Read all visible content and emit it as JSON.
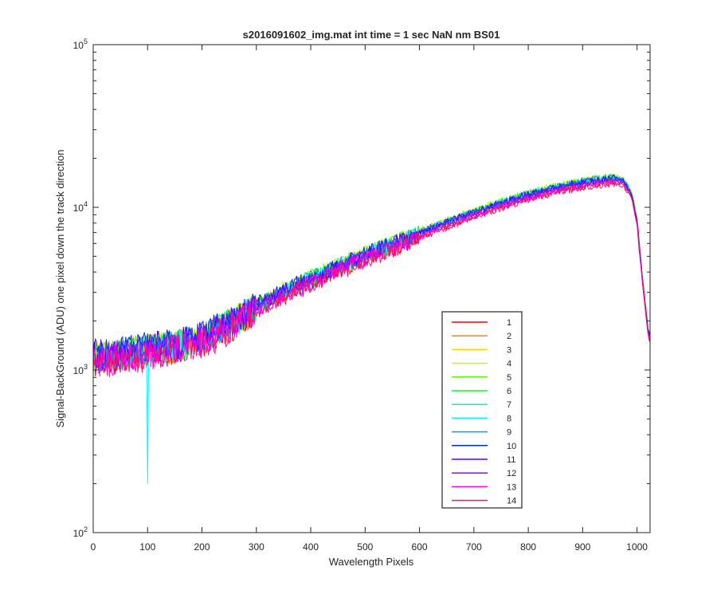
{
  "chart_data": {
    "type": "line",
    "title": "s2016091602_img.mat int time = 1 sec  NaN nm BS01",
    "xlabel": "Wavelength Pixels",
    "ylabel": "Signal-BackGround (ADU) one pixel down the track direction",
    "xlim": [
      0,
      1024
    ],
    "ylim": [
      100,
      100000
    ],
    "yscale": "log",
    "grid": false,
    "legend_position": "lower-right",
    "x_ticks": [
      0,
      100,
      200,
      300,
      400,
      500,
      600,
      700,
      800,
      900,
      1000
    ],
    "x_tick_labels": [
      "0",
      "100",
      "200",
      "300",
      "400",
      "500",
      "600",
      "700",
      "800",
      "900",
      "1000"
    ],
    "y_ticks": [
      {
        "value": 100,
        "base": "10",
        "exp": "2"
      },
      {
        "value": 1000,
        "base": "10",
        "exp": "3"
      },
      {
        "value": 10000,
        "base": "10",
        "exp": "4"
      },
      {
        "value": 100000,
        "base": "10",
        "exp": "5"
      }
    ],
    "x": [
      0,
      20,
      50,
      100,
      150,
      200,
      250,
      300,
      350,
      400,
      450,
      500,
      550,
      600,
      650,
      700,
      750,
      800,
      850,
      900,
      930,
      960,
      975,
      990,
      1000,
      1010,
      1020,
      1024
    ],
    "series": [
      {
        "name": "1",
        "color": "#ff0000",
        "values": [
          1120,
          1150,
          1200,
          1270,
          1360,
          1520,
          1850,
          2350,
          2900,
          3450,
          4100,
          4800,
          5600,
          6600,
          7700,
          8900,
          10100,
          11400,
          12500,
          13500,
          14000,
          14300,
          13900,
          11500,
          8000,
          3500,
          1700,
          1500
        ]
      },
      {
        "name": "2",
        "color": "#ff7f00",
        "values": [
          1160,
          1190,
          1240,
          1310,
          1400,
          1560,
          1900,
          2420,
          2980,
          3550,
          4230,
          4950,
          5780,
          6800,
          7900,
          9150,
          10400,
          11700,
          12850,
          13900,
          14400,
          14700,
          14200,
          11800,
          8200,
          3600,
          1750,
          1550
        ]
      },
      {
        "name": "3",
        "color": "#ffd400",
        "values": [
          1200,
          1230,
          1280,
          1350,
          1440,
          1610,
          1960,
          2490,
          3060,
          3650,
          4350,
          5100,
          5950,
          7000,
          8150,
          9400,
          10700,
          12050,
          13250,
          14350,
          14850,
          15200,
          14700,
          12200,
          8400,
          3700,
          1800,
          1600
        ]
      },
      {
        "name": "4",
        "color": "#b4ff00",
        "values": [
          1230,
          1260,
          1310,
          1380,
          1470,
          1640,
          2000,
          2540,
          3120,
          3720,
          4440,
          5200,
          6070,
          7150,
          8300,
          9600,
          10950,
          12300,
          13550,
          14650,
          15150,
          15500,
          15000,
          12400,
          8600,
          3750,
          1830,
          1620
        ]
      },
      {
        "name": "5",
        "color": "#55ff00",
        "values": [
          1220,
          1250,
          1300,
          1370,
          1460,
          1630,
          1990,
          2520,
          3100,
          3700,
          4410,
          5170,
          6030,
          7100,
          8250,
          9550,
          10900,
          12250,
          13500,
          14600,
          15100,
          15400,
          14900,
          12300,
          8500,
          3700,
          1820,
          1610
        ]
      },
      {
        "name": "6",
        "color": "#00ff2a",
        "values": [
          1200,
          1230,
          1280,
          1350,
          1440,
          1600,
          1950,
          2480,
          3050,
          3640,
          4340,
          5080,
          5930,
          6980,
          8120,
          9380,
          10700,
          12050,
          13250,
          14350,
          14850,
          15150,
          14650,
          12100,
          8400,
          3650,
          1800,
          1600
        ]
      },
      {
        "name": "7",
        "color": "#00ff99",
        "values": [
          1180,
          1210,
          1260,
          1330,
          1420,
          1580,
          1930,
          2450,
          3020,
          3600,
          4290,
          5030,
          5870,
          6900,
          8030,
          9280,
          10580,
          11900,
          13100,
          14200,
          14700,
          15000,
          14500,
          12000,
          8300,
          3600,
          1780,
          1580
        ]
      },
      {
        "name": "8",
        "color": "#00f5ff",
        "values": [
          1190,
          1220,
          1270,
          200,
          1430,
          1590,
          1940,
          2460,
          3030,
          3620,
          4310,
          5050,
          5900,
          6940,
          8070,
          9330,
          10640,
          11970,
          13170,
          14270,
          14770,
          15050,
          14550,
          12050,
          8350,
          3650,
          1790,
          1590
        ]
      },
      {
        "name": "9",
        "color": "#00a0ff",
        "values": [
          1210,
          1240,
          1290,
          1360,
          1450,
          1620,
          1970,
          2500,
          3080,
          3680,
          4380,
          5130,
          5990,
          7050,
          8200,
          9480,
          10800,
          12150,
          13380,
          14480,
          14980,
          15300,
          14800,
          12250,
          8450,
          3700,
          1810,
          1600
        ]
      },
      {
        "name": "10",
        "color": "#0028ff",
        "values": [
          1260,
          1290,
          1340,
          1410,
          1500,
          1670,
          2020,
          2540,
          3110,
          3700,
          4400,
          5140,
          5990,
          7030,
          8160,
          9420,
          10720,
          12050,
          13250,
          14300,
          14800,
          15100,
          14600,
          12100,
          8350,
          3650,
          1800,
          1600
        ]
      },
      {
        "name": "11",
        "color": "#5a00ff",
        "values": [
          1240,
          1270,
          1320,
          1390,
          1480,
          1650,
          1990,
          2500,
          3060,
          3640,
          4330,
          5060,
          5900,
          6920,
          8040,
          9280,
          10560,
          11880,
          13060,
          14100,
          14600,
          14900,
          14400,
          11950,
          8250,
          3600,
          1780,
          1580
        ]
      },
      {
        "name": "12",
        "color": "#a000ff",
        "values": [
          1170,
          1200,
          1250,
          1320,
          1410,
          1570,
          1900,
          2400,
          2950,
          3520,
          4200,
          4920,
          5750,
          6760,
          7860,
          9080,
          10350,
          11640,
          12800,
          13820,
          14300,
          14600,
          14100,
          11700,
          8100,
          3550,
          1750,
          1550
        ]
      },
      {
        "name": "13",
        "color": "#ff00f0",
        "values": [
          1110,
          1140,
          1190,
          1260,
          1350,
          1500,
          1830,
          2320,
          2860,
          3420,
          4080,
          4780,
          5590,
          6580,
          7650,
          8850,
          10100,
          11360,
          12480,
          13470,
          13950,
          14250,
          13750,
          11400,
          7900,
          3450,
          1700,
          1500
        ]
      },
      {
        "name": "14",
        "color": "#ff0f6e",
        "values": [
          1080,
          1110,
          1160,
          1230,
          1320,
          1470,
          1790,
          2270,
          2800,
          3350,
          4000,
          4690,
          5480,
          6460,
          7520,
          8700,
          9930,
          11180,
          12280,
          13250,
          13730,
          14020,
          13550,
          11250,
          7800,
          3400,
          1680,
          1480
        ]
      }
    ]
  }
}
